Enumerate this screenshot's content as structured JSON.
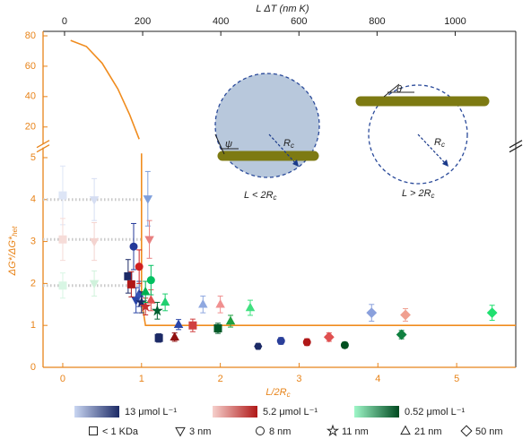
{
  "chart_data": {
    "type": "scatter",
    "x_label": "L/2R",
    "x_label_sub": "c",
    "x2_label": "L ΔT (nm K)",
    "y_label": "ΔG*/ΔG*",
    "y_label_sub": "het",
    "xlim": [
      -0.25,
      5.75
    ],
    "xticks": [
      0,
      1,
      2,
      3,
      4,
      5
    ],
    "x2lim": [
      -55,
      1155
    ],
    "x2ticks": [
      0,
      200,
      400,
      600,
      800,
      1000
    ],
    "ylim": [
      0,
      5.2
    ],
    "yticks": [
      0,
      1,
      2,
      3,
      4,
      5
    ],
    "y2lim": [
      10,
      80
    ],
    "y2ticks": [
      20,
      40,
      60,
      80
    ],
    "axis_color": "#e8841a",
    "theory_color": "#f08c1e",
    "upper_curve": {
      "x": [
        0.1,
        0.3,
        0.5,
        0.7,
        0.85,
        0.97
      ],
      "values": [
        77,
        73,
        62,
        45,
        28,
        12
      ]
    },
    "lower_curve": {
      "x": [
        1.0,
        1.0,
        1.05,
        5.75
      ],
      "values": [
        5.1,
        1.6,
        1.0,
        1.0
      ]
    },
    "reference_lines": {
      "color": "#c8c8c8",
      "x_end": 1.0,
      "values": [
        4.0,
        3.05,
        1.95
      ]
    },
    "series": [
      {
        "name": "13 μmol L⁻¹",
        "legend_gradient": [
          "#c9d6f2",
          "#1c2a66"
        ],
        "x": [
          0,
          0.4,
          0.83,
          0.9,
          0.93,
          0.97,
          1.0,
          1.08,
          1.22,
          1.47,
          1.78,
          2.48,
          2.77,
          3.92
        ],
        "values": [
          4.1,
          4.0,
          2.17,
          2.88,
          1.6,
          1.75,
          1.55,
          4.02,
          0.7,
          1.02,
          1.5,
          0.5,
          0.63,
          1.3
        ],
        "errors": [
          0.7,
          0.5,
          0.4,
          0.55,
          0.3,
          0.3,
          0.25,
          0.65,
          0.1,
          0.12,
          0.2,
          0.06,
          0.08,
          0.2
        ],
        "colors": [
          "#dde5f6",
          "#d6def2",
          "#1c2a66",
          "#24399a",
          "#2a45a8",
          "#3552b4",
          "#1c2a66",
          "#7f9fdb",
          "#1c2a66",
          "#2a45a8",
          "#8fa8e0",
          "#1c2a66",
          "#2a3f9a",
          "#8aa0dc"
        ],
        "markers": [
          "square",
          "triangle-down",
          "square",
          "circle",
          "triangle-down",
          "triangle",
          "star",
          "triangle-down",
          "square",
          "triangle",
          "triangle",
          "hexagon",
          "circle",
          "diamond"
        ]
      },
      {
        "name": "5.2 μmol L⁻¹",
        "legend_gradient": [
          "#f6d0cc",
          "#b01818"
        ],
        "x": [
          0,
          0.4,
          0.87,
          0.97,
          1.05,
          1.1,
          1.12,
          1.42,
          1.65,
          2.0,
          3.1,
          3.38,
          4.35
        ],
        "values": [
          3.05,
          3.0,
          1.98,
          2.4,
          1.45,
          3.05,
          1.6,
          0.72,
          1.0,
          1.5,
          0.6,
          0.72,
          1.25
        ],
        "errors": [
          0.5,
          0.45,
          0.3,
          0.4,
          0.2,
          0.45,
          0.25,
          0.1,
          0.15,
          0.2,
          0.08,
          0.1,
          0.15
        ],
        "colors": [
          "#f6dcd8",
          "#f4d4d0",
          "#b01818",
          "#d02020",
          "#c83030",
          "#e88080",
          "#e05050",
          "#901010",
          "#d04040",
          "#f09090",
          "#b01818",
          "#e05050",
          "#f0a090"
        ],
        "markers": [
          "square",
          "triangle-down",
          "square",
          "circle",
          "star",
          "triangle-down",
          "triangle",
          "triangle",
          "square",
          "triangle",
          "circle",
          "diamond",
          "diamond"
        ]
      },
      {
        "name": "0.52 μmol L⁻¹",
        "legend_gradient": [
          "#9ff7c8",
          "#004a20"
        ],
        "x": [
          0,
          0.4,
          1.05,
          1.12,
          1.2,
          1.3,
          1.97,
          2.13,
          2.38,
          3.58,
          4.3,
          5.45
        ],
        "values": [
          1.95,
          2.0,
          1.8,
          2.08,
          1.35,
          1.55,
          0.93,
          1.1,
          1.42,
          0.53,
          0.78,
          1.3
        ],
        "errors": [
          0.3,
          0.3,
          0.25,
          0.35,
          0.2,
          0.2,
          0.12,
          0.14,
          0.18,
          0.07,
          0.1,
          0.18
        ],
        "colors": [
          "#d8f6e4",
          "#d0f2dc",
          "#00b050",
          "#00c060",
          "#006030",
          "#20d070",
          "#005a28",
          "#20a040",
          "#40e080",
          "#005020",
          "#108040",
          "#20e070"
        ],
        "markers": [
          "square",
          "triangle-down",
          "triangle",
          "circle",
          "star",
          "triangle",
          "square",
          "triangle",
          "triangle",
          "circle",
          "diamond",
          "diamond"
        ]
      }
    ],
    "marker_legend": [
      {
        "label": "< 1 KDa",
        "marker": "square"
      },
      {
        "label": "3 nm",
        "marker": "triangle-down"
      },
      {
        "label": "8 nm",
        "marker": "circle"
      },
      {
        "label": "11 nm",
        "marker": "star"
      },
      {
        "label": "21 nm",
        "marker": "triangle"
      },
      {
        "label": "50 nm",
        "marker": "diamond"
      }
    ],
    "annotations": {
      "psi": "ψ",
      "theta": "θ",
      "rc_main": "R",
      "rc_sub": "c",
      "left_main": "L < 2R",
      "left_sub": "c",
      "right_main": "L > 2R",
      "right_sub": "c"
    }
  }
}
